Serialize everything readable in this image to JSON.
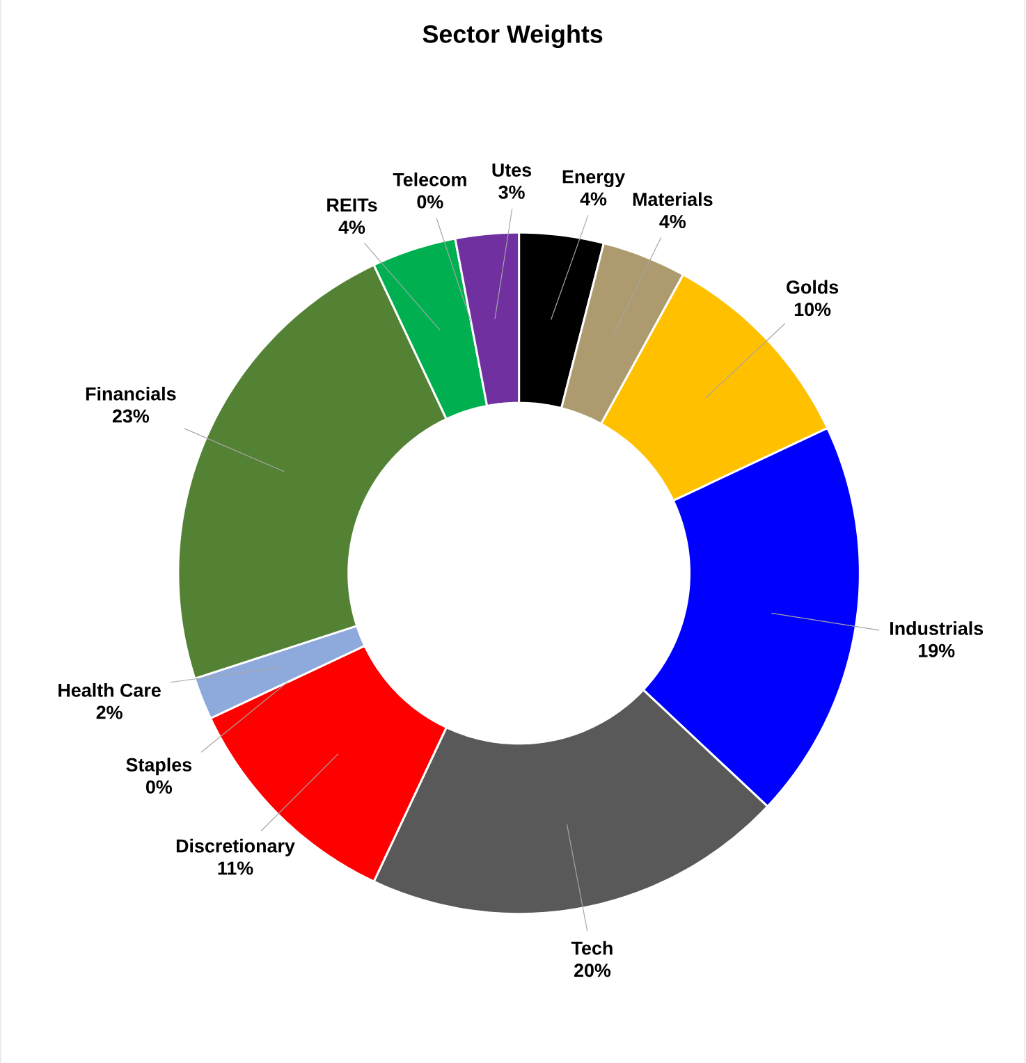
{
  "chart_data": {
    "type": "donut",
    "title": "Sector Weights",
    "categories": [
      "Energy",
      "Materials",
      "Golds",
      "Industrials",
      "Tech",
      "Discretionary",
      "Staples",
      "Health Care",
      "Financials",
      "REITs",
      "Telecom",
      "Utes"
    ],
    "values": [
      4,
      4,
      10,
      19,
      20,
      11,
      0,
      2,
      23,
      4,
      0,
      3
    ],
    "value_labels": [
      "4%",
      "4%",
      "10%",
      "19%",
      "20%",
      "11%",
      "0%",
      "2%",
      "23%",
      "4%",
      "0%",
      "3%"
    ],
    "colors": [
      "#000000",
      "#ae9a6f",
      "#ffc000",
      "#0000ff",
      "#595959",
      "#ff0000",
      "#a5a5a5",
      "#8ea9db",
      "#548235",
      "#00b050",
      "#00b0f0",
      "#7030a0"
    ]
  }
}
